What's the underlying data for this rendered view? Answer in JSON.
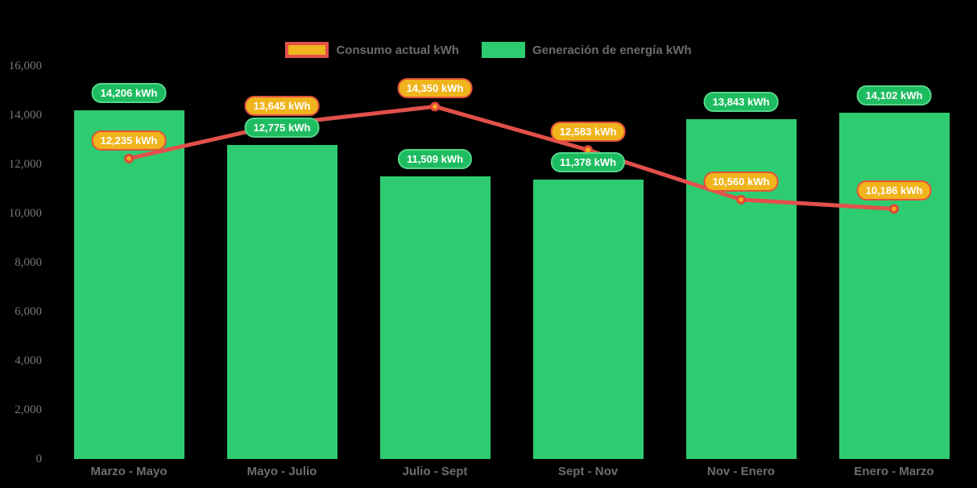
{
  "legend": {
    "items": [
      {
        "label": "Consumo actual kWh",
        "type": "line"
      },
      {
        "label": "Generación de energía kWh",
        "type": "bar"
      }
    ]
  },
  "chart_data": {
    "type": "bar+line",
    "categories": [
      "Marzo - Mayo",
      "Mayo - Julio",
      "Julio - Sept",
      "Sept - Nov",
      "Nov - Enero",
      "Enero - Marzo"
    ],
    "series": [
      {
        "name": "Consumo actual kWh",
        "type": "line",
        "values": [
          12235,
          13645,
          14350,
          12583,
          10560,
          10186
        ],
        "labels": [
          "12,235 kWh",
          "13,645 kWh",
          "14,350 kWh",
          "12,583 kWh",
          "10,560 kWh",
          "10,186 kWh"
        ]
      },
      {
        "name": "Generación de energía kWh",
        "type": "bar",
        "values": [
          14206,
          12775,
          11509,
          11378,
          13843,
          14102
        ],
        "labels": [
          "14,206 kWh",
          "12,775 kWh",
          "11,509 kWh",
          "11,378 kWh",
          "13,843 kWh",
          "14,102 kWh"
        ]
      }
    ],
    "y_axis": {
      "min": 0,
      "max": 16000,
      "step": 2000,
      "tick_labels": [
        "0",
        "2,000",
        "4,000",
        "6,000",
        "8,000",
        "10,000",
        "12,000",
        "14,000",
        "16,000"
      ]
    },
    "x_axis": {
      "label": ""
    },
    "grid": false,
    "legend_position": "top",
    "colors": {
      "background": "#000000",
      "bar_fill": "#2ecc70",
      "bar_label_fill": "#1ebc60",
      "bar_label_border": "#55d68b",
      "line_stroke": "#e2504a",
      "point_fill": "#f6a91c",
      "point_border": "#e0463c",
      "line_label_fill": "#f0b41c",
      "line_label_border": "#e3523d",
      "axis_text": "#6e6e6e",
      "label_text": "#ffffff"
    }
  }
}
